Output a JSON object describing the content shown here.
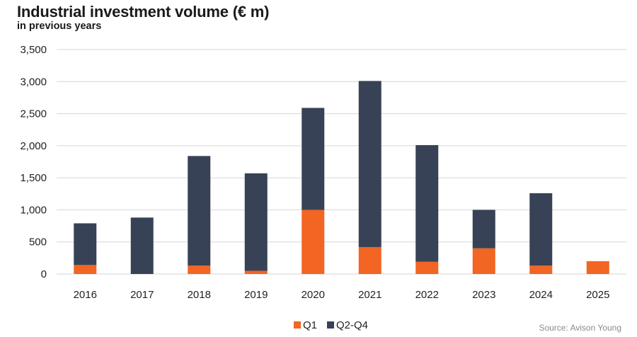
{
  "header": {
    "title": "Industrial investment volume (€ m)",
    "subtitle": "in previous years"
  },
  "source": "Source: Avison Young",
  "colors": {
    "q1": "#f26522",
    "q2q4": "#374256",
    "grid": "#d6d6d6",
    "text": "#222222"
  },
  "chart_data": {
    "type": "bar",
    "stacked": true,
    "categories": [
      "2016",
      "2017",
      "2018",
      "2019",
      "2020",
      "2021",
      "2022",
      "2023",
      "2024",
      "2025"
    ],
    "series": [
      {
        "name": "Q1",
        "color": "#f26522",
        "values": [
          140,
          0,
          130,
          50,
          1000,
          420,
          190,
          400,
          130,
          200
        ]
      },
      {
        "name": "Q2-Q4",
        "color": "#374256",
        "values": [
          650,
          880,
          1710,
          1520,
          1590,
          2590,
          1820,
          600,
          1130,
          0
        ]
      }
    ],
    "ylim": [
      0,
      3500
    ],
    "yticks": [
      0,
      500,
      1000,
      1500,
      2000,
      2500,
      3000,
      3500
    ],
    "ytick_labels": [
      "0",
      "500",
      "1,000",
      "1,500",
      "2,000",
      "2,500",
      "3,000",
      "3,500"
    ],
    "grid": true,
    "legend": "bottom-center",
    "title": "Industrial investment volume (€ m)",
    "subtitle": "in previous years",
    "xlabel": "",
    "ylabel": ""
  }
}
